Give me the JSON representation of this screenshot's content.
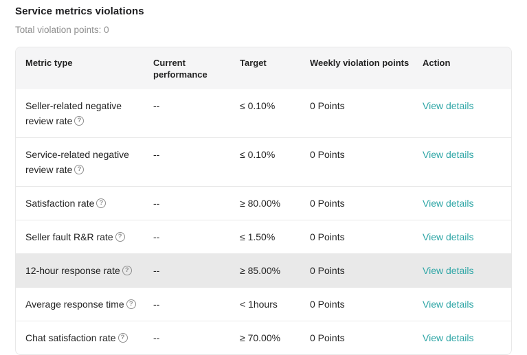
{
  "page": {
    "title": "Service metrics violations",
    "subtitle": "Total violation points: 0"
  },
  "table": {
    "columns": {
      "metric": "Metric type",
      "current": "Current performance",
      "target": "Target",
      "points": "Weekly violation points",
      "action": "Action"
    },
    "rows": [
      {
        "metric": "Seller-related negative review rate",
        "current": "--",
        "target": "≤ 0.10%",
        "points": "0 Points",
        "action": "View details"
      },
      {
        "metric": "Service-related negative review rate",
        "current": "--",
        "target": "≤ 0.10%",
        "points": "0 Points",
        "action": "View details"
      },
      {
        "metric": "Satisfaction rate",
        "current": "--",
        "target": "≥ 80.00%",
        "points": "0 Points",
        "action": "View details"
      },
      {
        "metric": "Seller fault R&R rate",
        "current": "--",
        "target": "≤ 1.50%",
        "points": "0 Points",
        "action": "View details"
      },
      {
        "metric": "12-hour response rate",
        "current": "--",
        "target": "≥ 85.00%",
        "points": "0 Points",
        "action": "View details"
      },
      {
        "metric": "Average response time",
        "current": "--",
        "target": "< 1hours",
        "points": "0 Points",
        "action": "View details"
      },
      {
        "metric": "Chat satisfaction rate",
        "current": "--",
        "target": "≥ 70.00%",
        "points": "0 Points",
        "action": "View details"
      }
    ]
  },
  "colors": {
    "accent_teal": "#2fa6a6",
    "header_background": "#f5f5f6",
    "highlighted_row_background": "#e9e9e9",
    "border": "#e8e8e8",
    "subtitle_gray": "#8e8e8e"
  }
}
